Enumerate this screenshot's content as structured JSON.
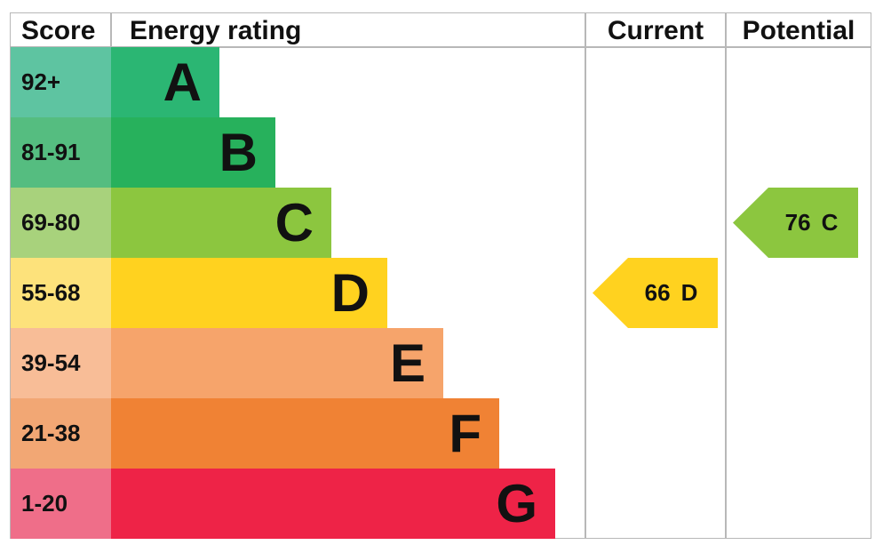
{
  "chart_data": {
    "type": "bar",
    "headers": {
      "score": "Score",
      "rating": "Energy rating",
      "current": "Current",
      "potential": "Potential"
    },
    "bands": [
      {
        "score": "92+",
        "letter": "A",
        "color": "#2bb673",
        "score_color": "#5ec4a1"
      },
      {
        "score": "81-91",
        "letter": "B",
        "color": "#27b15c",
        "score_color": "#55bd80"
      },
      {
        "score": "69-80",
        "letter": "C",
        "color": "#8cc63f",
        "score_color": "#a8d27c"
      },
      {
        "score": "55-68",
        "letter": "D",
        "color": "#ffd21f",
        "score_color": "#fde27b"
      },
      {
        "score": "39-54",
        "letter": "E",
        "color": "#f6a46b",
        "score_color": "#f8bd97"
      },
      {
        "score": "21-38",
        "letter": "F",
        "color": "#f08234",
        "score_color": "#f2a774"
      },
      {
        "score": "1-20",
        "letter": "G",
        "color": "#ee2347",
        "score_color": "#ef6e89"
      }
    ],
    "current": {
      "value": "66",
      "letter": "D",
      "color": "#ffd21f"
    },
    "potential": {
      "value": "76",
      "letter": "C",
      "color": "#8cc63f"
    }
  }
}
